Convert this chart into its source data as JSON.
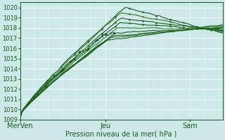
{
  "title": "",
  "xlabel": "Pression niveau de la mer( hPa )",
  "ylim": [
    1009,
    1020.5
  ],
  "yticks": [
    1009,
    1010,
    1011,
    1012,
    1013,
    1014,
    1015,
    1016,
    1017,
    1018,
    1019,
    1020
  ],
  "xtick_labels": [
    "MerVen",
    "Jeu",
    "Sam"
  ],
  "xtick_positions": [
    0.0,
    0.42,
    0.84
  ],
  "bg_color": "#cce8e8",
  "grid_color": "#ffffff",
  "line_color_dark": "#1a5c1a",
  "line_color_med": "#2d7a2d",
  "n_steps": 120
}
